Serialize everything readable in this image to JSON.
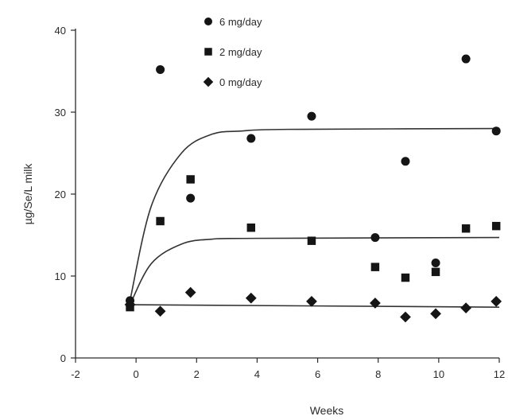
{
  "chart_data": {
    "type": "scatter",
    "xlabel": "Weeks",
    "ylabel": "µg/Se/L milk",
    "xlim": [
      -2,
      12
    ],
    "ylim": [
      0,
      40
    ],
    "x_ticks": [
      -2,
      0,
      2,
      4,
      6,
      8,
      10,
      12
    ],
    "y_ticks": [
      0,
      10,
      20,
      30,
      40
    ],
    "grid": false,
    "legend_position": "top-center",
    "series": [
      {
        "name": "6 mg/day",
        "marker": "circle",
        "color": "#151515",
        "points": [
          {
            "x": -0.2,
            "y": 7.0
          },
          {
            "x": 0.8,
            "y": 35.2
          },
          {
            "x": 1.8,
            "y": 19.5
          },
          {
            "x": 3.8,
            "y": 26.8
          },
          {
            "x": 5.8,
            "y": 29.5
          },
          {
            "x": 7.9,
            "y": 14.7
          },
          {
            "x": 8.9,
            "y": 24.0
          },
          {
            "x": 9.9,
            "y": 11.6
          },
          {
            "x": 10.9,
            "y": 36.5
          },
          {
            "x": 11.9,
            "y": 27.7
          }
        ],
        "fit": [
          [
            -0.2,
            7.0
          ],
          [
            0.5,
            18.5
          ],
          [
            1.5,
            25.0
          ],
          [
            2.5,
            27.3
          ],
          [
            3.5,
            27.7
          ],
          [
            5.0,
            27.9
          ],
          [
            12,
            28.0
          ]
        ]
      },
      {
        "name": "2 mg/day",
        "marker": "square",
        "color": "#151515",
        "points": [
          {
            "x": -0.2,
            "y": 6.2
          },
          {
            "x": 0.8,
            "y": 16.7
          },
          {
            "x": 1.8,
            "y": 21.8
          },
          {
            "x": 3.8,
            "y": 15.9
          },
          {
            "x": 5.8,
            "y": 14.3
          },
          {
            "x": 7.9,
            "y": 11.1
          },
          {
            "x": 8.9,
            "y": 9.8
          },
          {
            "x": 9.9,
            "y": 10.5
          },
          {
            "x": 10.9,
            "y": 15.8
          },
          {
            "x": 11.9,
            "y": 16.1
          }
        ],
        "fit": [
          [
            -0.2,
            6.5
          ],
          [
            0.5,
            11.5
          ],
          [
            1.5,
            13.9
          ],
          [
            2.5,
            14.5
          ],
          [
            4.0,
            14.6
          ],
          [
            12,
            14.7
          ]
        ]
      },
      {
        "name": "0 mg/day",
        "marker": "diamond",
        "color": "#151515",
        "points": [
          {
            "x": -0.2,
            "y": 6.5
          },
          {
            "x": 0.8,
            "y": 5.7
          },
          {
            "x": 1.8,
            "y": 8.0
          },
          {
            "x": 3.8,
            "y": 7.3
          },
          {
            "x": 5.8,
            "y": 6.9
          },
          {
            "x": 7.9,
            "y": 6.7
          },
          {
            "x": 8.9,
            "y": 5.0
          },
          {
            "x": 9.9,
            "y": 5.4
          },
          {
            "x": 10.9,
            "y": 6.1
          },
          {
            "x": 11.9,
            "y": 6.9
          }
        ],
        "fit": [
          [
            -0.2,
            6.5
          ],
          [
            12,
            6.2
          ]
        ]
      }
    ]
  }
}
